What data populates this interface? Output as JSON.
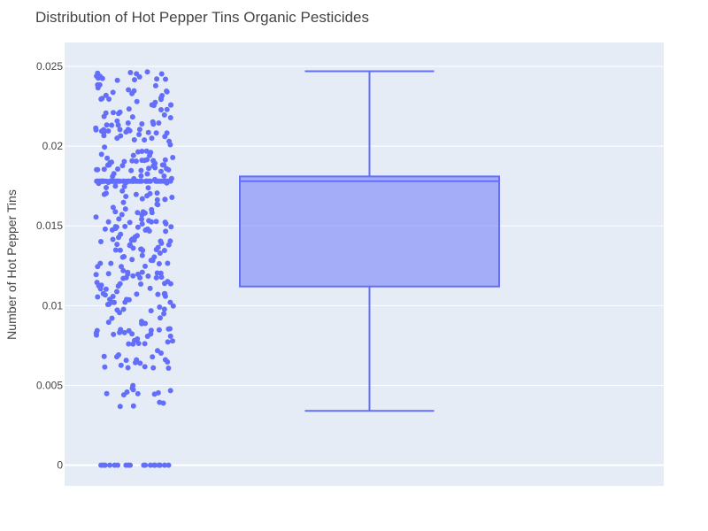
{
  "chart_data": {
    "type": "box",
    "title": "Distribution of Hot Pepper Tins Organic Pesticides",
    "xlabel": "",
    "ylabel": "Number of Hot Pepper Tins",
    "ylim": [
      -0.0013,
      0.0265
    ],
    "yticks": [
      0,
      0.005,
      0.01,
      0.015,
      0.02,
      0.025
    ],
    "ytick_labels": [
      "0",
      "0.005",
      "0.01",
      "0.015",
      "0.02",
      "0.025"
    ],
    "grid": true,
    "box": {
      "min": 0.0034,
      "q1": 0.0112,
      "median": 0.0178,
      "q3": 0.0181,
      "max": 0.0247
    },
    "points": {
      "count": 420,
      "min": 0,
      "max": 0.0247,
      "zero_count": 18,
      "mode_value": 0.0178,
      "mode_count": 60
    },
    "colors": {
      "background": "#ffffff",
      "plot_bg": "#e5ecf6",
      "grid": "#ffffff",
      "marker": "#636efa",
      "box_fill": "rgba(99,110,250,0.5)",
      "box_line": "#636efa"
    }
  }
}
